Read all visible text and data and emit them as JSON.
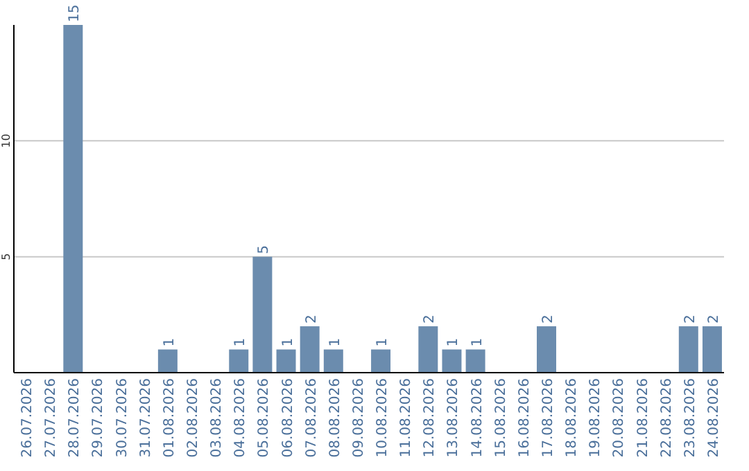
{
  "chart_data": {
    "type": "bar",
    "categories": [
      "26.07.2026",
      "27.07.2026",
      "28.07.2026",
      "29.07.2026",
      "30.07.2026",
      "31.07.2026",
      "01.08.2026",
      "02.08.2026",
      "03.08.2026",
      "04.08.2026",
      "05.08.2026",
      "06.08.2026",
      "07.08.2026",
      "08.08.2026",
      "09.08.2026",
      "10.08.2026",
      "11.08.2026",
      "12.08.2026",
      "13.08.2026",
      "14.08.2026",
      "15.08.2026",
      "16.08.2026",
      "17.08.2026",
      "18.08.2026",
      "19.08.2026",
      "20.08.2026",
      "21.08.2026",
      "22.08.2026",
      "23.08.2026",
      "24.08.2026"
    ],
    "values": [
      0,
      0,
      15,
      0,
      0,
      0,
      1,
      0,
      0,
      1,
      5,
      1,
      2,
      1,
      0,
      1,
      0,
      2,
      1,
      1,
      0,
      0,
      2,
      0,
      0,
      0,
      0,
      0,
      2,
      2
    ],
    "value_labels": [
      null,
      null,
      "15",
      null,
      null,
      null,
      "1",
      null,
      null,
      "1",
      "5",
      "1",
      "2",
      "1",
      null,
      "1",
      null,
      "2",
      "1",
      "1",
      null,
      null,
      "2",
      null,
      null,
      null,
      null,
      null,
      "2",
      "2"
    ],
    "color": "#6b8cae",
    "ylim": [
      0,
      15
    ],
    "yticks": [
      5,
      10
    ],
    "grid": "y"
  }
}
